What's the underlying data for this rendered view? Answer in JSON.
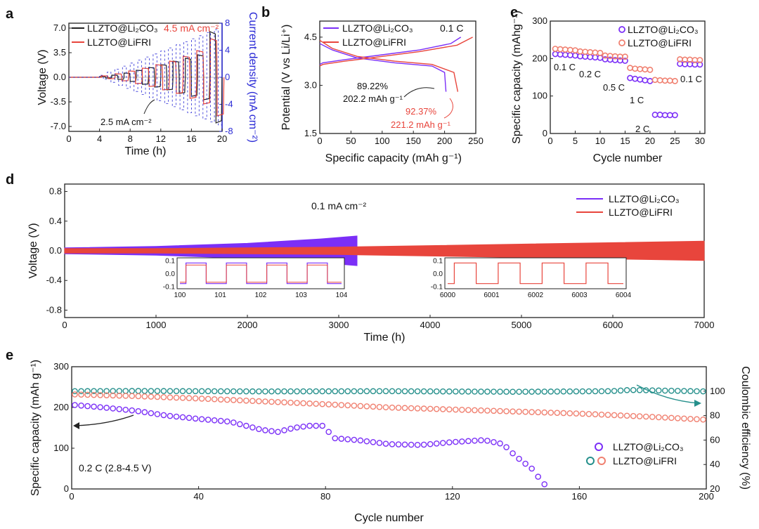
{
  "colors": {
    "black": "#222222",
    "li2co3": "#7b2ff7",
    "lifri": "#e8453c",
    "lifri_light": "#f08070",
    "right_axis_blue": "#2b2bd6",
    "teal": "#26908c"
  },
  "chart_data": [
    {
      "panel": "a",
      "type": "line",
      "xlabel": "Time (h)",
      "ylabel": "Voltage (V)",
      "y2label": "Current density (mA cm⁻²)",
      "xlim": [
        0,
        20
      ],
      "ylim": [
        -7.7,
        7.7
      ],
      "y2lim": [
        -8,
        8
      ],
      "xticks": [
        "0",
        "4",
        "8",
        "12",
        "16",
        "20"
      ],
      "yticks": [
        "7.0",
        "3.5",
        "0.0",
        "-3.5",
        "-7.0"
      ],
      "y2ticks": [
        "8",
        "4",
        "0",
        "-4",
        "-8"
      ],
      "legend": [
        "LLZTO@Li₂CO₃",
        "LLZTO@LiFRI"
      ],
      "legend_position": "top-left",
      "annotations": [
        "4.5 mA cm⁻²",
        "2.5 mA cm⁻²"
      ],
      "series": [
        {
          "name": "LLZTO@Li₂CO₃",
          "note": "step current test, voltage amplitude (V) per 1 h step",
          "step_current_mA_cm2": [
            0.25,
            0.5,
            0.75,
            1.0,
            1.25,
            1.5,
            1.75,
            2.0,
            2.25,
            2.5
          ],
          "peak_voltage_V": [
            0.1,
            0.3,
            0.6,
            1.0,
            1.4,
            1.8,
            2.3,
            2.7,
            3.2,
            6.5
          ]
        },
        {
          "name": "LLZTO@LiFRI",
          "note": "step current test, voltage amplitude (V) per 1 h step",
          "step_current_mA_cm2": [
            0.5,
            1.0,
            1.5,
            2.0,
            2.5,
            3.0,
            3.5,
            4.0,
            4.5
          ],
          "peak_voltage_V": [
            0.2,
            0.5,
            0.9,
            1.3,
            1.8,
            2.3,
            3.0,
            3.8,
            5.5
          ]
        }
      ]
    },
    {
      "panel": "b",
      "type": "line",
      "xlabel": "Specific capacity (mAh g⁻¹)",
      "ylabel": "Potential (V vs Li/Li⁺)",
      "xlim": [
        0,
        250
      ],
      "ylim": [
        1.5,
        5.0
      ],
      "xticks": [
        "0",
        "50",
        "100",
        "150",
        "200",
        "250"
      ],
      "yticks": [
        "4.5",
        "3.0",
        "1.5"
      ],
      "legend": [
        "LLZTO@Li₂CO₃",
        "LLZTO@LiFRI"
      ],
      "rate_label": "0.1 C",
      "annotations": [
        "89.22%",
        "202.2 mAh g⁻¹",
        "92.37%",
        "221.2 mAh g⁻¹"
      ],
      "series": [
        {
          "name": "LLZTO@Li₂CO₃ charge",
          "x": [
            0,
            5,
            40,
            100,
            160,
            210,
            226
          ],
          "y": [
            3.65,
            3.7,
            3.8,
            3.95,
            4.1,
            4.3,
            4.5
          ]
        },
        {
          "name": "LLZTO@Li₂CO₃ discharge",
          "x": [
            0,
            20,
            60,
            120,
            180,
            200,
            202.2
          ],
          "y": [
            4.3,
            4.1,
            3.85,
            3.7,
            3.6,
            3.4,
            2.8
          ]
        },
        {
          "name": "LLZTO@LiFRI charge",
          "x": [
            0,
            5,
            40,
            100,
            160,
            220,
            245
          ],
          "y": [
            3.6,
            3.65,
            3.75,
            3.9,
            4.05,
            4.25,
            4.5
          ]
        },
        {
          "name": "LLZTO@LiFRI discharge",
          "x": [
            0,
            20,
            60,
            120,
            180,
            215,
            221.2
          ],
          "y": [
            4.4,
            4.15,
            3.9,
            3.75,
            3.65,
            3.4,
            2.8
          ]
        }
      ]
    },
    {
      "panel": "c",
      "type": "scatter",
      "xlabel": "Cycle number",
      "ylabel": "Specific capacity (mAhg⁻¹)",
      "xlim": [
        0,
        31
      ],
      "ylim": [
        0,
        300
      ],
      "xticks": [
        "0",
        "5",
        "10",
        "15",
        "20",
        "25",
        "30"
      ],
      "yticks": [
        "300",
        "200",
        "100",
        "0"
      ],
      "legend": [
        "LLZTO@Li₂CO₃",
        "LLZTO@LiFRI"
      ],
      "rate_labels": [
        "0.1 C",
        "0.2 C",
        "0.5 C",
        "1 C",
        "2 C",
        "0.1 C"
      ],
      "series": [
        {
          "name": "LLZTO@Li₂CO₃",
          "x": [
            1,
            2,
            3,
            4,
            5,
            6,
            7,
            8,
            9,
            10,
            11,
            12,
            13,
            14,
            15,
            16,
            17,
            18,
            19,
            20,
            21,
            22,
            23,
            24,
            25,
            26,
            27,
            28,
            29,
            30
          ],
          "y": [
            212,
            211,
            210,
            209,
            208,
            206,
            205,
            204,
            203,
            202,
            198,
            197,
            196,
            195,
            194,
            148,
            146,
            144,
            142,
            140,
            50,
            50,
            49,
            49,
            49,
            186,
            185,
            185,
            184,
            184
          ]
        },
        {
          "name": "LLZTO@LiFRI",
          "x": [
            1,
            2,
            3,
            4,
            5,
            6,
            7,
            8,
            9,
            10,
            11,
            12,
            13,
            14,
            15,
            16,
            17,
            18,
            19,
            20,
            21,
            22,
            23,
            24,
            25,
            26,
            27,
            28,
            29,
            30
          ],
          "y": [
            226,
            225,
            224,
            223,
            222,
            219,
            218,
            217,
            216,
            215,
            208,
            207,
            206,
            205,
            205,
            175,
            173,
            172,
            171,
            170,
            143,
            142,
            141,
            141,
            140,
            198,
            197,
            197,
            196,
            196
          ]
        }
      ]
    },
    {
      "panel": "d",
      "type": "line",
      "xlabel": "Time (h)",
      "ylabel": "Voltage (V)",
      "xlim": [
        0,
        7000
      ],
      "ylim": [
        -0.9,
        0.9
      ],
      "xticks": [
        "0",
        "1000",
        "2000",
        "3000",
        "4000",
        "5000",
        "6000",
        "7000"
      ],
      "yticks": [
        "0.8",
        "0.4",
        "0.0",
        "-0.4",
        "-0.8"
      ],
      "legend": [
        "LLZTO@Li₂CO₃",
        "LLZTO@LiFRI"
      ],
      "annotation": "0.1 mA cm⁻²",
      "inset1": {
        "xticks": [
          "100",
          "101",
          "102",
          "103",
          "104"
        ],
        "yticks": [
          "0.1",
          "0.0",
          "-0.1"
        ]
      },
      "inset2": {
        "xticks": [
          "6000",
          "6001",
          "6002",
          "6003",
          "6004"
        ],
        "yticks": [
          "0.1",
          "0.0",
          "-0.1"
        ]
      },
      "series": [
        {
          "name": "LLZTO@Li₂CO₃",
          "time_h": [
            0,
            1000,
            2000,
            2800,
            3200
          ],
          "half_amplitude_V": [
            0.04,
            0.06,
            0.1,
            0.16,
            0.2
          ]
        },
        {
          "name": "LLZTO@LiFRI",
          "time_h": [
            0,
            1000,
            3000,
            5000,
            7000
          ],
          "half_amplitude_V": [
            0.03,
            0.03,
            0.05,
            0.09,
            0.13
          ]
        }
      ]
    },
    {
      "panel": "e",
      "type": "scatter",
      "xlabel": "Cycle number",
      "ylabel": "Specific capacity (mAh g⁻¹)",
      "y2label": "Coulombic efficiency (%)",
      "xlim": [
        0,
        200
      ],
      "ylim": [
        0,
        300
      ],
      "y2lim": [
        20,
        120
      ],
      "xticks": [
        "0",
        "40",
        "80",
        "120",
        "160",
        "200"
      ],
      "yticks": [
        "300",
        "200",
        "100",
        "0"
      ],
      "y2ticks": [
        "100",
        "80",
        "60",
        "40",
        "20"
      ],
      "legend": [
        "LLZTO@Li₂CO₃",
        "LLZTO@LiFRI"
      ],
      "annotation": "0.2 C (2.8-4.5 V)",
      "series": [
        {
          "name": "LLZTO@Li₂CO₃ capacity",
          "x": [
            1,
            10,
            20,
            30,
            40,
            50,
            60,
            65,
            70,
            75,
            80,
            82,
            90,
            100,
            110,
            120,
            130,
            136,
            140,
            145,
            148,
            150
          ],
          "y": [
            206,
            200,
            192,
            180,
            172,
            165,
            145,
            140,
            150,
            155,
            155,
            125,
            120,
            110,
            108,
            115,
            120,
            110,
            80,
            50,
            20,
            3
          ]
        },
        {
          "name": "LLZTO@LiFRI capacity",
          "x": [
            1,
            20,
            40,
            60,
            80,
            100,
            120,
            140,
            160,
            180,
            200
          ],
          "y": [
            232,
            228,
            222,
            215,
            208,
            200,
            195,
            190,
            185,
            178,
            170
          ]
        },
        {
          "name": "LLZTO@LiFRI coulombic efficiency",
          "x": [
            1,
            20,
            60,
            100,
            140,
            170,
            176,
            200
          ],
          "y": [
            100,
            100.2,
            99.8,
            100,
            99.5,
            100,
            101,
            99.8
          ]
        }
      ]
    }
  ]
}
